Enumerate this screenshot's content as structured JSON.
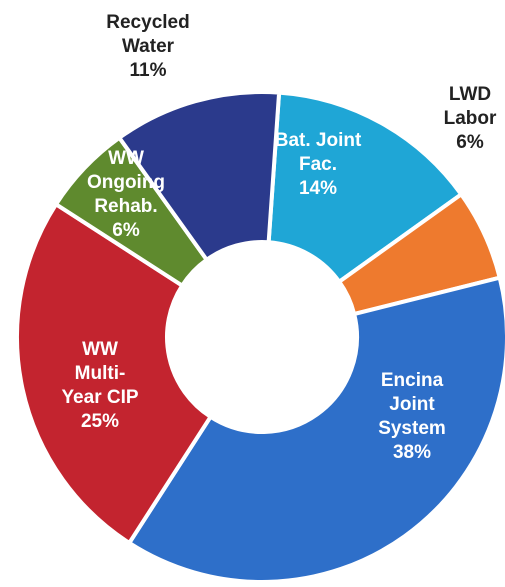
{
  "chart_data": {
    "type": "pie",
    "donut": true,
    "title": "",
    "legend": "none",
    "slices": [
      {
        "label_lines": [
          "Bat. Joint",
          "Fac."
        ],
        "percent_label": "14%",
        "value": 14,
        "color": "#1fa6d6",
        "label_position": "inside"
      },
      {
        "label_lines": [
          "LWD",
          "Labor"
        ],
        "percent_label": "6%",
        "value": 6,
        "color": "#ee7a2e",
        "label_position": "outside"
      },
      {
        "label_lines": [
          "Encina",
          "Joint",
          "System"
        ],
        "percent_label": "38%",
        "value": 38,
        "color": "#2e6fc9",
        "label_position": "inside"
      },
      {
        "label_lines": [
          "WW",
          "Multi-",
          "Year CIP"
        ],
        "percent_label": "25%",
        "value": 25,
        "color": "#c3242f",
        "label_position": "inside"
      },
      {
        "label_lines": [
          "WW",
          "Ongoing",
          "Rehab."
        ],
        "percent_label": "6%",
        "value": 6,
        "color": "#5f8a2e",
        "label_position": "inside"
      },
      {
        "label_lines": [
          "Recycled",
          "Water"
        ],
        "percent_label": "11%",
        "value": 11,
        "color": "#2b3a8c",
        "label_position": "outside"
      }
    ]
  }
}
